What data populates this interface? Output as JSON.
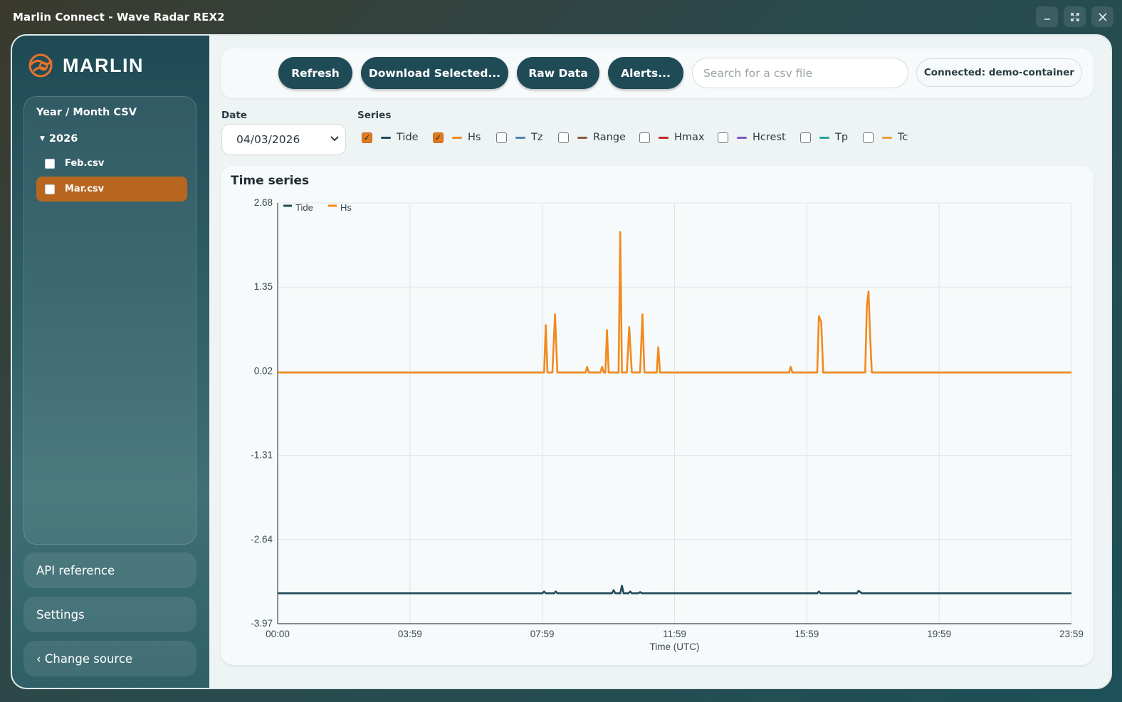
{
  "window": {
    "title": "Marlin Connect - Wave Radar REX2",
    "controls": [
      "minimize",
      "maximize",
      "close"
    ]
  },
  "sidebar": {
    "logo_text": "MARLIN",
    "tree_heading": "Year / Month CSV",
    "year": "2026",
    "files": [
      {
        "label": "Feb.csv",
        "checked": false,
        "selected": false
      },
      {
        "label": "Mar.csv",
        "checked": false,
        "selected": true
      }
    ],
    "buttons": {
      "api": "API reference",
      "settings": "Settings",
      "change_source": "‹ Change source"
    }
  },
  "toolbar": {
    "refresh": "Refresh",
    "download": "Download Selected...",
    "raw": "Raw Data",
    "alerts": "Alerts...",
    "search_placeholder": "Search for a csv file",
    "connection": "Connected: demo-container"
  },
  "filters": {
    "date_label": "Date",
    "date_value": "04/03/2026",
    "series_label": "Series",
    "series": [
      {
        "name": "Tide",
        "checked": true,
        "color": "#1f4b57"
      },
      {
        "name": "Hs",
        "checked": true,
        "color": "#f28a1e"
      },
      {
        "name": "Tz",
        "checked": false,
        "color": "#4d84b5"
      },
      {
        "name": "Range",
        "checked": false,
        "color": "#8a5a44"
      },
      {
        "name": "Hmax",
        "checked": false,
        "color": "#c62828"
      },
      {
        "name": "Hcrest",
        "checked": false,
        "color": "#7e57c2"
      },
      {
        "name": "Tp",
        "checked": false,
        "color": "#26a69a"
      },
      {
        "name": "Tc",
        "checked": false,
        "color": "#e8a03a"
      }
    ]
  },
  "chart_data": {
    "type": "line",
    "title": "Time series",
    "xlabel": "Time (UTC)",
    "ylabel": "",
    "x_tick_labels": [
      "00:00",
      "03:59",
      "07:59",
      "11:59",
      "15:59",
      "19:59",
      "23:59"
    ],
    "y_tick_labels": [
      "2.68",
      "1.35",
      "0.02",
      "-1.31",
      "-2.64",
      "-3.97"
    ],
    "x_unit": "hours",
    "xlim": [
      0,
      23.98
    ],
    "ylim": [
      -3.97,
      2.68
    ],
    "grid": true,
    "legend_position": "top-left",
    "series": [
      {
        "name": "Tide",
        "color": "#1f4b57",
        "points": [
          [
            0,
            -3.49
          ],
          [
            8.0,
            -3.49
          ],
          [
            8.05,
            -3.46
          ],
          [
            8.1,
            -3.49
          ],
          [
            8.35,
            -3.49
          ],
          [
            8.4,
            -3.46
          ],
          [
            8.45,
            -3.49
          ],
          [
            10.1,
            -3.49
          ],
          [
            10.15,
            -3.44
          ],
          [
            10.2,
            -3.49
          ],
          [
            10.35,
            -3.49
          ],
          [
            10.4,
            -3.37
          ],
          [
            10.45,
            -3.49
          ],
          [
            10.6,
            -3.49
          ],
          [
            10.65,
            -3.46
          ],
          [
            10.7,
            -3.49
          ],
          [
            10.9,
            -3.49
          ],
          [
            10.95,
            -3.47
          ],
          [
            11.0,
            -3.49
          ],
          [
            16.3,
            -3.49
          ],
          [
            16.35,
            -3.46
          ],
          [
            16.4,
            -3.49
          ],
          [
            17.5,
            -3.49
          ],
          [
            17.55,
            -3.45
          ],
          [
            17.6,
            -3.47
          ],
          [
            17.65,
            -3.49
          ],
          [
            23.98,
            -3.49
          ]
        ]
      },
      {
        "name": "Hs",
        "color": "#f28a1e",
        "points": [
          [
            0,
            0.0
          ],
          [
            8.05,
            0.0
          ],
          [
            8.1,
            0.75
          ],
          [
            8.15,
            0.0
          ],
          [
            8.3,
            0.0
          ],
          [
            8.38,
            0.92
          ],
          [
            8.45,
            0.0
          ],
          [
            9.3,
            0.0
          ],
          [
            9.35,
            0.09
          ],
          [
            9.4,
            0.0
          ],
          [
            9.75,
            0.0
          ],
          [
            9.8,
            0.09
          ],
          [
            9.85,
            0.0
          ],
          [
            9.9,
            0.0
          ],
          [
            9.95,
            0.67
          ],
          [
            10.0,
            0.0
          ],
          [
            10.05,
            0.0
          ],
          [
            10.1,
            0.0
          ],
          [
            10.15,
            0.0
          ],
          [
            10.3,
            0.0
          ],
          [
            10.35,
            2.22
          ],
          [
            10.4,
            0.0
          ],
          [
            10.55,
            0.0
          ],
          [
            10.62,
            0.72
          ],
          [
            10.7,
            0.0
          ],
          [
            10.95,
            0.0
          ],
          [
            11.02,
            0.92
          ],
          [
            11.08,
            0.0
          ],
          [
            11.45,
            0.0
          ],
          [
            11.5,
            0.4
          ],
          [
            11.55,
            0.0
          ],
          [
            15.45,
            0.0
          ],
          [
            15.5,
            0.09
          ],
          [
            15.55,
            0.0
          ],
          [
            16.3,
            0.0
          ],
          [
            16.35,
            0.89
          ],
          [
            16.42,
            0.8
          ],
          [
            16.48,
            0.0
          ],
          [
            17.75,
            0.0
          ],
          [
            17.8,
            1.05
          ],
          [
            17.85,
            1.28
          ],
          [
            17.9,
            0.55
          ],
          [
            17.95,
            0.0
          ],
          [
            23.98,
            0.0
          ]
        ]
      }
    ]
  }
}
